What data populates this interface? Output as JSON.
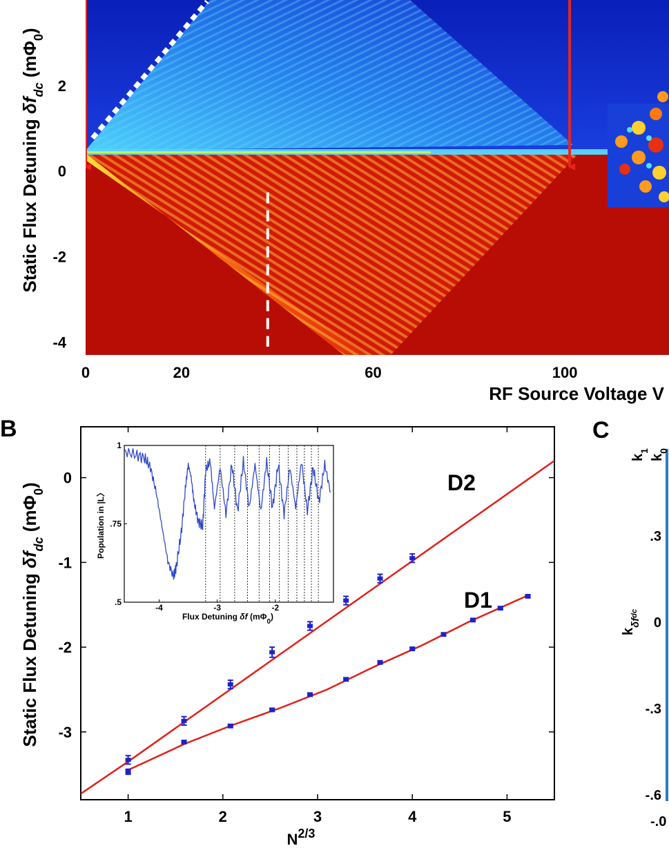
{
  "colors": {
    "heatmap_low": "#0a24c8",
    "heatmap_high": "#b80d05",
    "arrow": "#e8261c",
    "fit_line": "#e0201a",
    "points": "#1f22c9",
    "inset_trace": "#3048c8",
    "panel_c_edge": "#2b7ad0"
  },
  "chart_data": [
    {
      "panel": "A",
      "type": "heatmap",
      "xlabel": "RF Source Voltage V",
      "ylabel": "Static Flux Detuning δf_dc (mΦ0)",
      "xlabel_text": "RF Source Voltage V",
      "ylabel_prefix": "Static Flux Detuning ",
      "ylabel_symbol": "δf",
      "ylabel_sub": "dc",
      "ylabel_unit": " (mΦ",
      "ylabel_unit_sub": "0",
      "ylabel_close": ")",
      "xlim": [
        0,
        120
      ],
      "ylim": [
        -4.3,
        4
      ],
      "xticks": [
        "0",
        "20",
        "60",
        "100"
      ],
      "xtick_values": [
        0,
        20,
        60,
        100
      ],
      "yticks": [
        "2",
        "0",
        "-2",
        "-4"
      ],
      "ytick_values": [
        2,
        0,
        -2,
        -4
      ],
      "arrows_at_x": [
        0,
        101
      ],
      "dashed_line_x": 38,
      "dashed_line_yrange": [
        -4.3,
        -0.5
      ]
    },
    {
      "panel": "B",
      "type": "scatter",
      "xlabel": "N^(2/3)",
      "xlabel_base": "N",
      "xlabel_exp": "2/3",
      "ylabel": "Static Flux Detuning δf_dc (mΦ0)",
      "ylabel_prefix": "Static Flux Detuning ",
      "ylabel_symbol": "δf",
      "ylabel_sub": "dc",
      "ylabel_unit": " (mΦ",
      "ylabel_unit_sub": "0",
      "ylabel_close": ")",
      "xlim": [
        0.5,
        5.5
      ],
      "ylim": [
        -3.8,
        0.6
      ],
      "xticks": [
        "1",
        "2",
        "3",
        "4",
        "5"
      ],
      "xtick_values": [
        1,
        2,
        3,
        4,
        5
      ],
      "yticks": [
        "0",
        "-1",
        "-2",
        "-3"
      ],
      "ytick_values": [
        0,
        -1,
        -2,
        -3
      ],
      "series": [
        {
          "name": "D2",
          "x": [
            1.0,
            1.59,
            2.08,
            2.52,
            2.92,
            3.3,
            3.66,
            4.0
          ],
          "y": [
            -3.33,
            -2.87,
            -2.44,
            -2.06,
            -1.75,
            -1.45,
            -1.19,
            -0.95
          ],
          "err": [
            0.05,
            0.05,
            0.05,
            0.06,
            0.05,
            0.05,
            0.05,
            0.05
          ]
        },
        {
          "name": "D1",
          "x": [
            1.0,
            1.59,
            2.08,
            2.52,
            2.92,
            3.3,
            3.66,
            4.0,
            4.33,
            4.64,
            4.93,
            5.22
          ],
          "y": [
            -3.47,
            -3.12,
            -2.93,
            -2.74,
            -2.56,
            -2.38,
            -2.18,
            -2.02,
            -1.85,
            -1.68,
            -1.54,
            -1.4
          ],
          "err": [
            0.03,
            0.02,
            0.02,
            0.02,
            0.02,
            0.02,
            0.02,
            0.02,
            0.02,
            0.02,
            0.02,
            0.02
          ]
        }
      ],
      "fit_lines": {
        "D2": {
          "x": [
            0.5,
            1.0,
            5.5
          ],
          "y": [
            -3.73,
            -3.35,
            0.2
          ]
        },
        "D1": {
          "x": [
            1.0,
            1.6,
            2.1,
            2.6,
            3.1,
            3.6,
            4.1,
            4.6,
            5.22
          ],
          "y": [
            -3.45,
            -3.14,
            -2.92,
            -2.72,
            -2.5,
            -2.23,
            -1.98,
            -1.7,
            -1.39
          ]
        }
      }
    },
    {
      "panel": "B-inset",
      "type": "line",
      "xlabel": "Flux Detuning δf (mΦ0)",
      "xlabel_prefix": "Flux Detuning ",
      "xlabel_symbol": "δf",
      "xlabel_unit": " (mΦ",
      "xlabel_unit_sub": "0",
      "xlabel_close": ")",
      "ylabel": "Population in |L〉",
      "xlim": [
        -4.6,
        -1.0
      ],
      "ylim": [
        0.5,
        1.0
      ],
      "xticks": [
        "-4",
        "-3",
        "-2"
      ],
      "xtick_values": [
        -4,
        -3,
        -2
      ],
      "yticks": [
        "1",
        ".75",
        ".5"
      ],
      "ytick_values": [
        1.0,
        0.75,
        0.5
      ],
      "vlines_x": [
        -3.2,
        -2.95,
        -2.7,
        -2.48,
        -2.28,
        -2.1,
        -1.93,
        -1.78,
        -1.63,
        -1.5,
        -1.38,
        -1.26
      ],
      "trace": {
        "x": [
          -4.6,
          -4.4,
          -4.25,
          -4.15,
          -4.05,
          -3.95,
          -3.85,
          -3.75,
          -3.7,
          -3.62,
          -3.55,
          -3.5,
          -3.45,
          -3.4,
          -3.33,
          -3.25,
          -3.2,
          -3.12,
          -3.05,
          -2.95,
          -2.85,
          -2.75,
          -2.65,
          -2.55,
          -2.45,
          -2.35,
          -2.25,
          -2.15,
          -2.05,
          -1.95,
          -1.85,
          -1.75,
          -1.65,
          -1.55,
          -1.45,
          -1.35,
          -1.25,
          -1.15,
          -1.05
        ],
        "y": [
          0.98,
          0.97,
          0.96,
          0.93,
          0.85,
          0.74,
          0.63,
          0.58,
          0.62,
          0.72,
          0.86,
          0.94,
          0.9,
          0.82,
          0.76,
          0.74,
          0.92,
          0.95,
          0.8,
          0.93,
          0.78,
          0.94,
          0.79,
          0.95,
          0.8,
          0.94,
          0.79,
          0.95,
          0.8,
          0.94,
          0.78,
          0.93,
          0.8,
          0.95,
          0.79,
          0.93,
          0.82,
          0.94,
          0.85
        ]
      }
    },
    {
      "panel": "C",
      "type": "line",
      "ylabel_symbol": "k",
      "ylabel_sub": "δf",
      "ylabel_subsub": "dc",
      "legend_labels": [
        "k1",
        "k0"
      ],
      "legend_k1_base": "k",
      "legend_k1_sub": "1",
      "legend_k0_base": "k",
      "legend_k0_sub": "0",
      "ylim": [
        -0.6,
        0.6
      ],
      "yticks": [
        ".3",
        "0",
        "-.3",
        "-.6"
      ],
      "ytick_values": [
        0.3,
        0.0,
        -0.3,
        -0.6
      ],
      "xtick_partial": "-.0"
    }
  ],
  "panel_letters": {
    "b": "B",
    "c": "C"
  },
  "series_labels": {
    "d2": "D2",
    "d1": "D1"
  }
}
